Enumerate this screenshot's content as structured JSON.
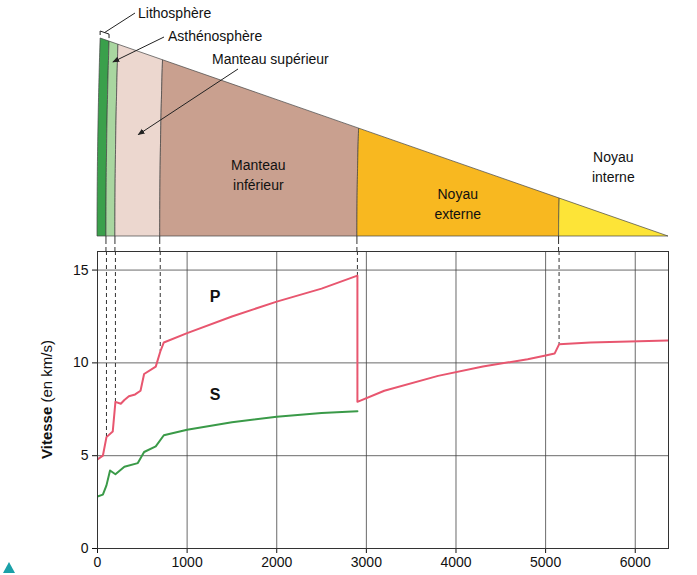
{
  "chart_data": {
    "type": "line",
    "y_label": "Vitesse (en km/s)",
    "xlim": [
      0,
      6371
    ],
    "xticks": [
      0,
      1000,
      2000,
      3000,
      4000,
      5000,
      6000
    ],
    "ylim": [
      0,
      16
    ],
    "yticks": [
      0,
      5,
      10,
      15
    ],
    "grid": true,
    "series": [
      {
        "name": "P",
        "color": "#e8566f",
        "x": [
          0,
          60,
          100,
          170,
          200,
          260,
          300,
          350,
          420,
          480,
          520,
          650,
          700,
          740,
          1000,
          1500,
          2000,
          2500,
          2900,
          2900,
          3200,
          3800,
          4300,
          4800,
          5000,
          5100,
          5150,
          5500,
          6371
        ],
        "values": [
          4.8,
          5.0,
          6.0,
          6.3,
          7.9,
          7.8,
          8.0,
          8.2,
          8.3,
          8.5,
          9.4,
          9.8,
          10.6,
          11.1,
          11.6,
          12.5,
          13.3,
          14.0,
          14.7,
          7.9,
          8.5,
          9.3,
          9.8,
          10.2,
          10.4,
          10.5,
          11.0,
          11.1,
          11.2
        ]
      },
      {
        "name": "S",
        "color": "#3a9a48",
        "x": [
          0,
          60,
          100,
          140,
          200,
          300,
          450,
          520,
          650,
          740,
          1000,
          1500,
          2000,
          2500,
          2900
        ],
        "values": [
          2.8,
          2.9,
          3.4,
          4.2,
          4.0,
          4.4,
          4.6,
          5.2,
          5.5,
          6.1,
          6.4,
          6.8,
          7.1,
          7.3,
          7.4
        ]
      }
    ]
  },
  "diagram": {
    "layers": [
      {
        "label": "Lithosphère",
        "top": 0,
        "bottom": 100,
        "color": "#3aa04b"
      },
      {
        "label": "Asthénosphère",
        "top": 100,
        "bottom": 200,
        "color": "#a9d6a0"
      },
      {
        "label": "Manteau supérieur",
        "top": 200,
        "bottom": 700,
        "color": "#ecd7cf"
      },
      {
        "label": "Manteau inférieur",
        "top": 700,
        "bottom": 2900,
        "color": "#c9a08f"
      },
      {
        "label": "Noyau externe",
        "top": 2900,
        "bottom": 5150,
        "color": "#f8b820"
      },
      {
        "label": "Noyau interne",
        "top": 5150,
        "bottom": 6371,
        "color": "#fde437"
      }
    ]
  }
}
